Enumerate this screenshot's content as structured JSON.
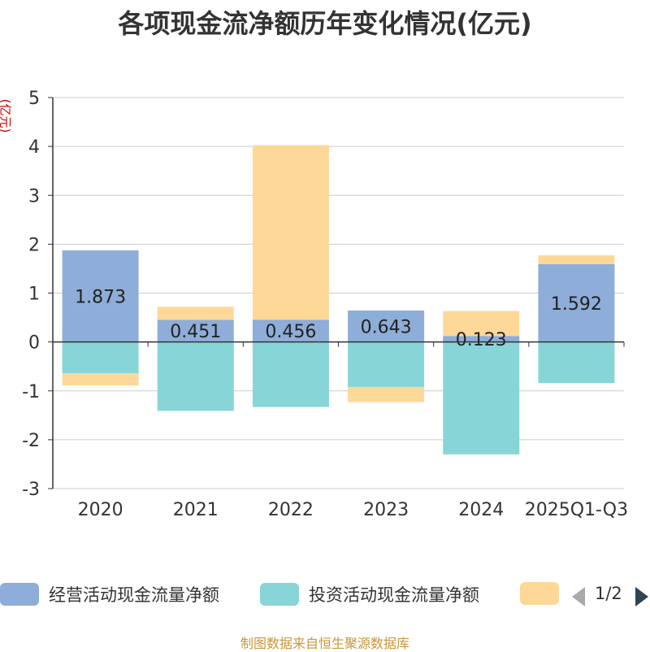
{
  "chart_data": {
    "type": "bar",
    "stacked": true,
    "title": "各项现金流净额历年变化情况(亿元)",
    "ylabel": "(亿元)",
    "ylim": [
      -3,
      5
    ],
    "yticks": [
      "5",
      "4",
      "3",
      "2",
      "1",
      "0",
      "-1",
      "-2",
      "-3"
    ],
    "categories": [
      "2020",
      "2021",
      "2022",
      "2023",
      "2024",
      "2025Q1-Q3"
    ],
    "series": [
      {
        "name": "经营活动现金流量净额",
        "color": "#8eadd8",
        "values": [
          1.873,
          0.451,
          0.456,
          0.643,
          0.123,
          1.592
        ],
        "labels": [
          "1.873",
          "0.451",
          "0.456",
          "0.643",
          "0.123",
          "1.592"
        ]
      },
      {
        "name": "投资活动现金流量净额",
        "color": "#88d5d8",
        "values": [
          -0.64,
          -1.41,
          -1.33,
          -0.92,
          -2.3,
          -0.84
        ]
      },
      {
        "name": "",
        "color": "#fed898",
        "values": [
          -0.25,
          0.27,
          3.57,
          -0.31,
          0.51,
          0.18
        ]
      }
    ],
    "legend": {
      "position": "bottom",
      "page": "1/2"
    },
    "source": "制图数据来自恒生聚源数据库"
  }
}
